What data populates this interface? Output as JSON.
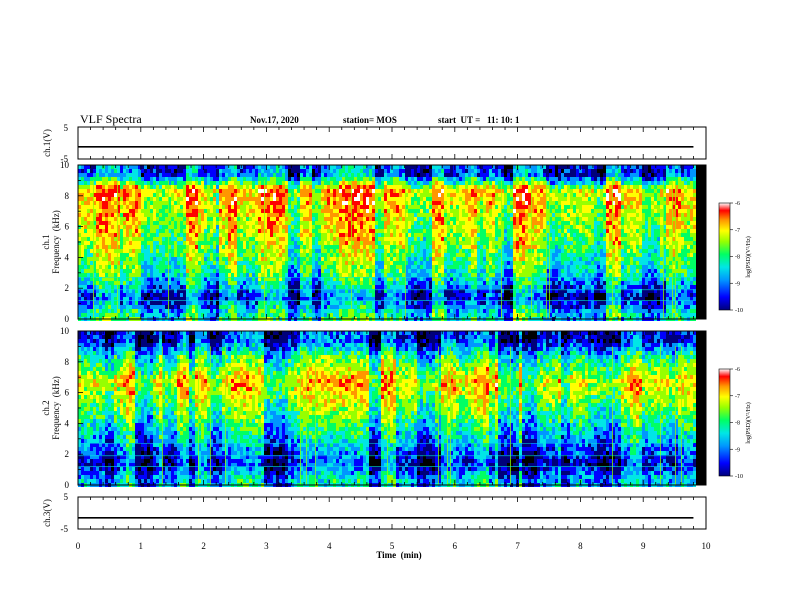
{
  "header": {
    "title": "VLF Spectra",
    "date": "Nov.17, 2020",
    "station": "station= MOS",
    "start_ut": "start  UT =   11: 10: 1"
  },
  "x_axis": {
    "label": "Time  (min)",
    "ticks": [
      0,
      1,
      2,
      3,
      4,
      5,
      6,
      7,
      8,
      9,
      10
    ],
    "tick_labels": [
      "0",
      "1",
      "2",
      "3",
      "4",
      "5",
      "6",
      "7",
      "8",
      "9",
      "10"
    ],
    "range": [
      0,
      10
    ]
  },
  "colors": {
    "colormap": [
      "#000000",
      "#00007a",
      "#0000ff",
      "#0096ff",
      "#00e6e6",
      "#00ff64",
      "#96ff00",
      "#ffff00",
      "#ff9600",
      "#ff0000",
      "#ffffff"
    ],
    "frame": "#000000"
  },
  "chart_data": [
    {
      "type": "line",
      "name": "ch.1(V)",
      "ylabel": "ch.1(V)",
      "ylim": [
        -5,
        5
      ],
      "ytick_labels": [
        "5",
        "-5"
      ],
      "x": [
        0,
        9.8
      ],
      "values": [
        -1.2,
        -1.2
      ]
    },
    {
      "type": "heatmap",
      "ylabel_line1": "ch.1",
      "ylabel_line2": "Frequency  (kHz)",
      "ylim": [
        0,
        10
      ],
      "ytick_labels": [
        "0",
        "2",
        "4",
        "6",
        "8",
        "10"
      ],
      "x_range": [
        0,
        9.8
      ],
      "colorbar": {
        "label": "log(PSD)(V²/Hz)",
        "ticks": [
          "-6",
          "-7",
          "-8",
          "-9",
          "-10"
        ],
        "range": [
          -10,
          -6
        ]
      },
      "intensity_by_freq_khz": {
        "0.5": -8.6,
        "1.5": -9.6,
        "3": -8.4,
        "5": -7.8,
        "7": -7.4,
        "8.5": -7.1,
        "9.5": -9.4
      }
    },
    {
      "type": "heatmap",
      "ylabel_line1": "ch.2",
      "ylabel_line2": "Frequency  (kHz)",
      "ylim": [
        0,
        10
      ],
      "ytick_labels": [
        "0",
        "2",
        "4",
        "6",
        "8",
        "10"
      ],
      "x_range": [
        0,
        9.8
      ],
      "colorbar": {
        "label": "log(PSD)(V²/Hz)",
        "ticks": [
          "-6",
          "-7",
          "-8",
          "-9",
          "-10"
        ],
        "range": [
          -10,
          -6
        ]
      },
      "intensity_by_freq_khz": {
        "0.5": -8.8,
        "1.5": -9.7,
        "3": -8.9,
        "5": -8.0,
        "6.8": -7.3,
        "8.5": -8.4,
        "9.5": -9.6
      }
    },
    {
      "type": "line",
      "name": "ch.3(V)",
      "ylabel": "ch.3(V)",
      "ylim": [
        -5,
        5
      ],
      "ytick_labels": [
        "5",
        "-5"
      ],
      "x": [
        0,
        9.8
      ],
      "values": [
        -1.5,
        -1.5
      ]
    }
  ]
}
